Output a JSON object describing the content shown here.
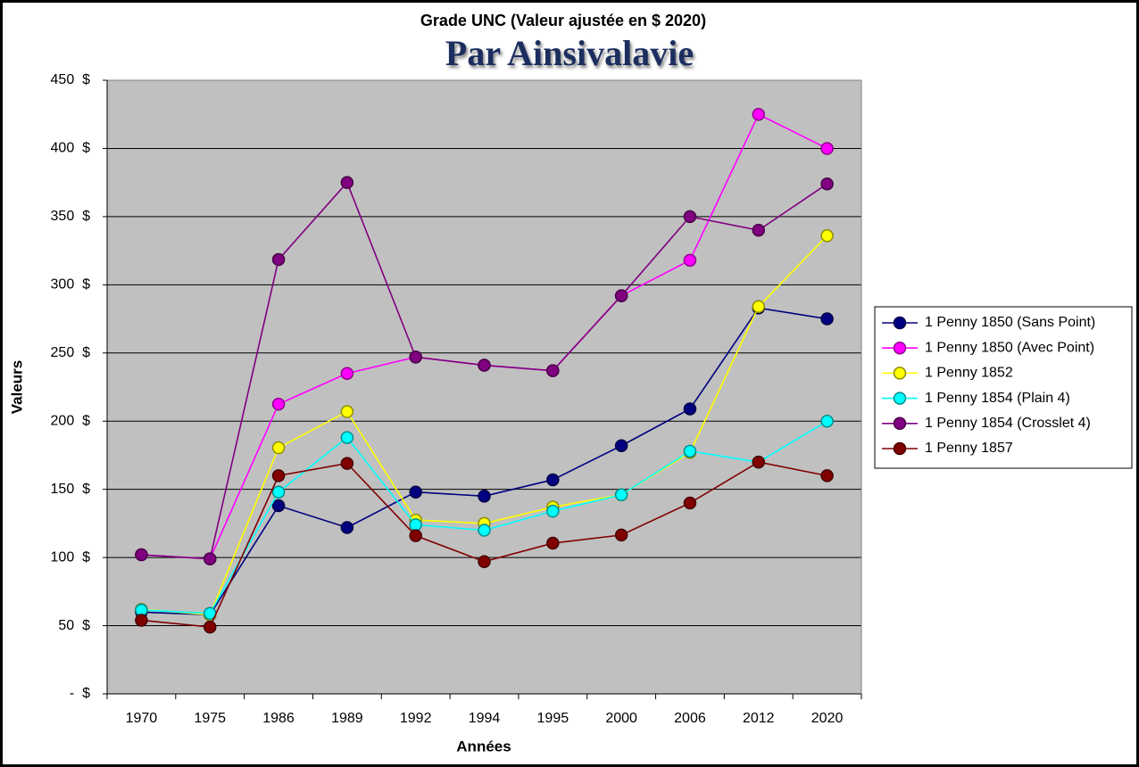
{
  "chart_data": {
    "type": "line",
    "title": "Grade UNC (Valeur ajustée en $ 2020)",
    "subtitle": "Par Ainsivalavie",
    "x_label": "Années",
    "y_label": "Valeurs",
    "categories": [
      "1970",
      "1975",
      "1986",
      "1989",
      "1992",
      "1994",
      "1995",
      "2000",
      "2006",
      "2012",
      "2020"
    ],
    "series": [
      {
        "name": "1 Penny 1850 (Sans Point)",
        "color": "#000080",
        "values": [
          60,
          58,
          138,
          122,
          148,
          145,
          157,
          182,
          209,
          283,
          275
        ]
      },
      {
        "name": "1 Penny 1850 (Avec Point)",
        "color": "#ff00ff",
        "values": [
          102,
          99,
          212.5,
          235,
          247,
          241,
          237,
          292,
          318,
          425,
          400
        ]
      },
      {
        "name": "1 Penny 1852",
        "color": "#ffff00",
        "values": [
          62,
          58,
          180.5,
          207,
          127.5,
          125,
          137,
          146,
          177,
          284,
          336
        ]
      },
      {
        "name": "1 Penny 1854 (Plain 4)",
        "color": "#00ffff",
        "values": [
          61.5,
          59,
          148,
          188,
          124,
          120,
          134,
          146,
          178,
          170,
          200
        ]
      },
      {
        "name": "1 Penny 1854 (Crosslet 4)",
        "color": "#800080",
        "values": [
          102,
          99,
          318.5,
          375,
          247,
          241,
          237,
          292,
          350,
          340,
          374
        ]
      },
      {
        "name": "1 Penny 1857",
        "color": "#800000",
        "values": [
          54,
          49,
          160,
          169,
          116,
          97,
          110.5,
          116.5,
          140,
          170,
          160
        ]
      }
    ],
    "ylim": [
      0,
      450
    ],
    "yticks": [
      {
        "value": 0,
        "label": "-  $"
      },
      {
        "value": 50,
        "label": "50  $"
      },
      {
        "value": 100,
        "label": "100  $"
      },
      {
        "value": 150,
        "label": "150  $"
      },
      {
        "value": 200,
        "label": "200  $"
      },
      {
        "value": 250,
        "label": "250  $"
      },
      {
        "value": 300,
        "label": "300  $"
      },
      {
        "value": 350,
        "label": "350  $"
      },
      {
        "value": 400,
        "label": "400  $"
      },
      {
        "value": 450,
        "label": "450  $"
      }
    ],
    "grid": true,
    "legend": "right",
    "plot_background": "#c0c0c0"
  }
}
